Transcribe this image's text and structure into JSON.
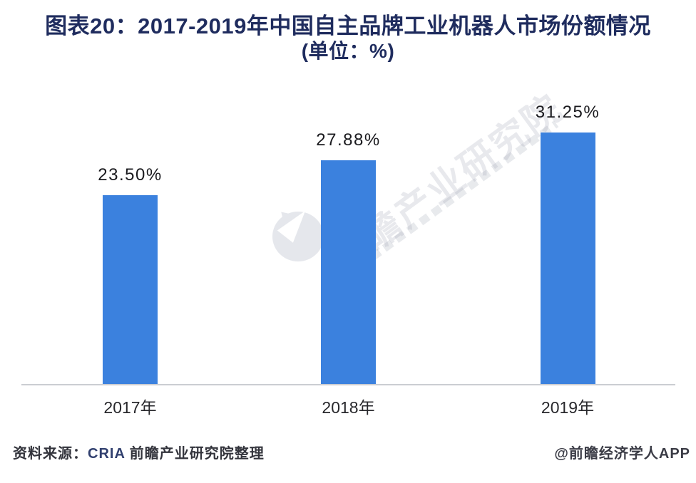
{
  "title": {
    "line1": "图表20：2017-2019年中国自主品牌工业机器人市场份额情况",
    "line2": "(单位：%)"
  },
  "chart_data": {
    "type": "bar",
    "title": "图表20：2017-2019年中国自主品牌工业机器人市场份额情况 (单位：%)",
    "categories": [
      "2017年",
      "2018年",
      "2019年"
    ],
    "values": [
      23.5,
      27.88,
      31.25
    ],
    "value_labels": [
      "23.50%",
      "27.88%",
      "31.25%"
    ],
    "unit": "%",
    "ylim": [
      0,
      35
    ],
    "grid": false,
    "legend": false,
    "bar_color": "#3b81de",
    "axis_line_color": "#cbcdd2"
  },
  "watermark": {
    "text": "前瞻产业研究院"
  },
  "footer": {
    "source_prefix": "资料来源：",
    "source_cria": "CRIA",
    "source_suffix": " 前瞻产业研究院整理",
    "credit": "@前瞻经济学人APP"
  }
}
